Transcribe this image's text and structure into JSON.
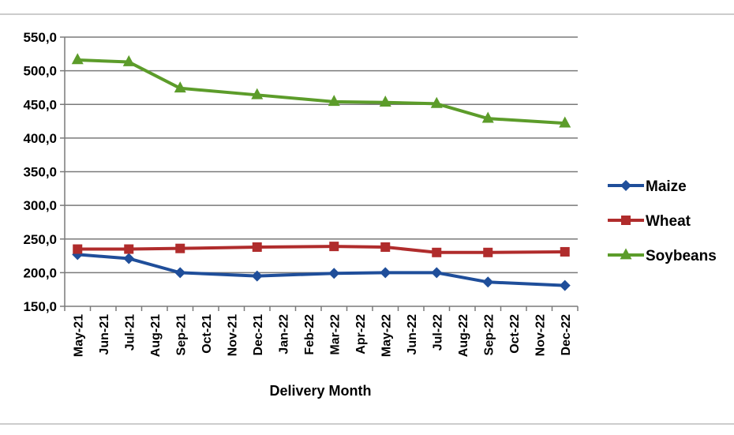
{
  "chart_data": {
    "type": "line",
    "title": "",
    "xlabel": "Delivery Month",
    "ylabel": "",
    "ylim": [
      150,
      550
    ],
    "ytick_step": 50,
    "ytick_labels": [
      "150,0",
      "200,0",
      "250,0",
      "300,0",
      "350,0",
      "400,0",
      "450,0",
      "500,0",
      "550,0"
    ],
    "categories": [
      "May-21",
      "Jun-21",
      "Jul-21",
      "Aug-21",
      "Sep-21",
      "Oct-21",
      "Nov-21",
      "Dec-21",
      "Jan-22",
      "Feb-22",
      "Mar-22",
      "Apr-22",
      "May-22",
      "Jun-22",
      "Jul-22",
      "Aug-22",
      "Sep-22",
      "Oct-22",
      "Nov-22",
      "Dec-22"
    ],
    "grid": true,
    "legend_position": "right",
    "series": [
      {
        "name": "Maize",
        "color": "#1F4E9A",
        "marker": "diamond",
        "points": [
          {
            "x": "May-21",
            "y": 227
          },
          {
            "x": "Jul-21",
            "y": 221
          },
          {
            "x": "Sep-21",
            "y": 200
          },
          {
            "x": "Dec-21",
            "y": 195
          },
          {
            "x": "Mar-22",
            "y": 199
          },
          {
            "x": "May-22",
            "y": 200
          },
          {
            "x": "Jul-22",
            "y": 200
          },
          {
            "x": "Sep-22",
            "y": 186
          },
          {
            "x": "Dec-22",
            "y": 181
          }
        ]
      },
      {
        "name": "Wheat",
        "color": "#B02C2C",
        "marker": "square",
        "points": [
          {
            "x": "May-21",
            "y": 235
          },
          {
            "x": "Jul-21",
            "y": 235
          },
          {
            "x": "Sep-21",
            "y": 236
          },
          {
            "x": "Dec-21",
            "y": 238
          },
          {
            "x": "Mar-22",
            "y": 239
          },
          {
            "x": "May-22",
            "y": 238
          },
          {
            "x": "Jul-22",
            "y": 230
          },
          {
            "x": "Sep-22",
            "y": 230
          },
          {
            "x": "Dec-22",
            "y": 231
          }
        ]
      },
      {
        "name": "Soybeans",
        "color": "#5C9C2A",
        "marker": "triangle",
        "points": [
          {
            "x": "May-21",
            "y": 516
          },
          {
            "x": "Jul-21",
            "y": 513
          },
          {
            "x": "Sep-21",
            "y": 474
          },
          {
            "x": "Dec-21",
            "y": 464
          },
          {
            "x": "Mar-22",
            "y": 454
          },
          {
            "x": "May-22",
            "y": 453
          },
          {
            "x": "Jul-22",
            "y": 451
          },
          {
            "x": "Sep-22",
            "y": 429
          },
          {
            "x": "Dec-22",
            "y": 422
          }
        ]
      }
    ]
  }
}
